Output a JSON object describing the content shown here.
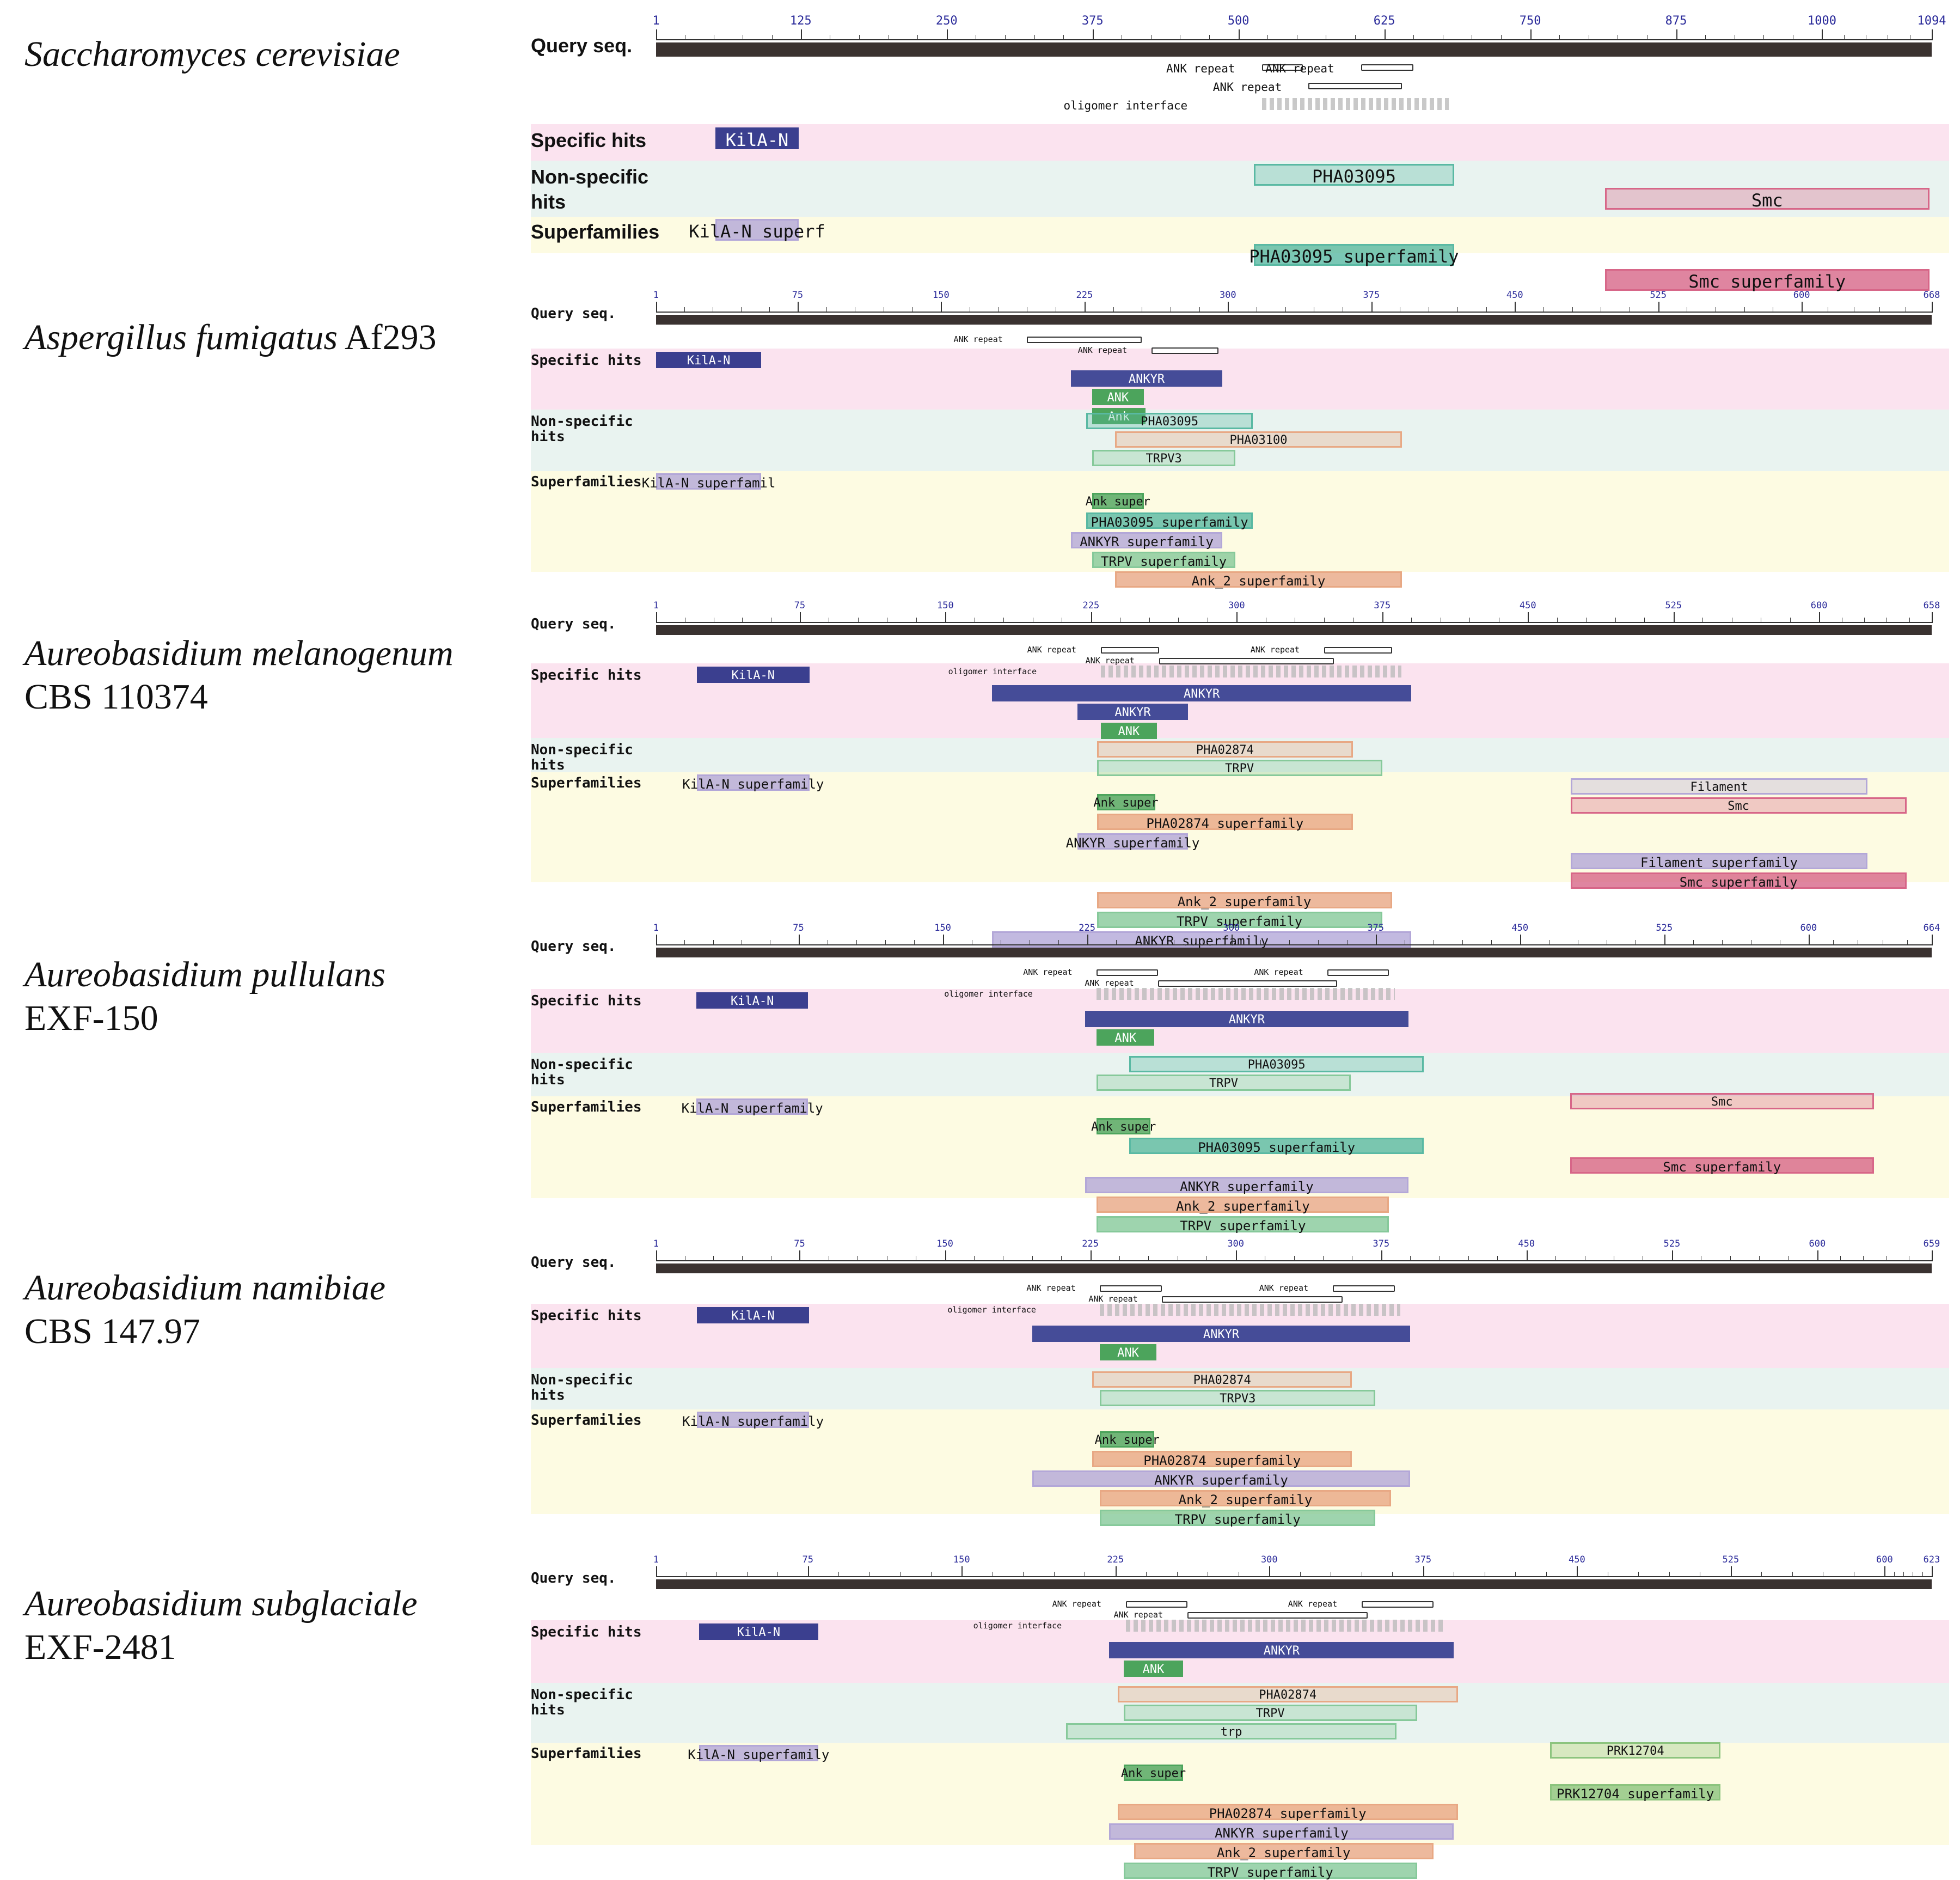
{
  "labels": {
    "query": "Query seq.",
    "specific": "Specific hits",
    "nonspecific1": "Non-specific",
    "nonspecific2": "hits",
    "superfamilies": "Superfamilies",
    "ank_repeat": "ANK repeat",
    "oligomer": "oligomer interface"
  },
  "colors": {
    "band_specific": "#fbe3ef",
    "band_nonspecific": "#e9f3f0",
    "band_superfamily": "#fdfbe2",
    "ruler": "#3a3230",
    "kila": "#3b3f8f",
    "ankyr": "#454c98",
    "ank": "#4ca45c",
    "pha": "#59b9a3",
    "pha_orange": "#e8a884",
    "trpv": "#86c99a",
    "smc": "#d76688",
    "superfamily_purple": "#b3a7d8",
    "prk": "#8cc47e"
  },
  "panels": [
    {
      "genus": "Saccharomyces cerevisiae",
      "strain": "",
      "length": 1094,
      "ticks": [
        "1",
        "125",
        "250",
        "375",
        "500",
        "625",
        "750",
        "875",
        "1000",
        "1094"
      ],
      "tick_values": [
        1,
        125,
        250,
        375,
        500,
        625,
        750,
        875,
        1000,
        1094
      ],
      "motifs": [
        {
          "label": "ANK repeat",
          "start": 520,
          "end": 555,
          "row": 0
        },
        {
          "label": "ANK repeat",
          "start": 605,
          "end": 650,
          "row": 0
        },
        {
          "label": "ANK repeat",
          "start": 560,
          "end": 640,
          "row": 1
        },
        {
          "label": "oligomer interface",
          "start": 520,
          "end": 680,
          "row": 2,
          "olig": true
        }
      ],
      "features": [
        {
          "name": "KilA-N",
          "start": 52,
          "end": 123,
          "kind": "specific",
          "color": "kila"
        },
        {
          "name": "KilA-N superf",
          "start": 52,
          "end": 123,
          "kind": "superfamily",
          "color": "superfamily_purple"
        },
        {
          "name": "PHA03095",
          "start": 513,
          "end": 685,
          "kind": "nonspecific",
          "color": "pha"
        },
        {
          "name": "PHA03095 superfamily",
          "start": 513,
          "end": 685,
          "kind": "superfamily",
          "color": "pha"
        },
        {
          "name": "Smc",
          "start": 814,
          "end": 1092,
          "kind": "nonspecific",
          "color": "smc"
        },
        {
          "name": "Smc superfamily",
          "start": 814,
          "end": 1092,
          "kind": "superfamily",
          "color": "smc"
        }
      ]
    },
    {
      "genus": "Aspergillus fumigatus",
      "strain": "Af293",
      "length": 668,
      "ticks": [
        "1",
        "75",
        "150",
        "225",
        "300",
        "375",
        "450",
        "525",
        "600",
        "668"
      ],
      "tick_values": [
        1,
        75,
        150,
        225,
        300,
        375,
        450,
        525,
        600,
        668
      ],
      "motifs": [
        {
          "label": "ANK repeat",
          "start": 195,
          "end": 255,
          "row": 0
        },
        {
          "label": "ANK repeat",
          "start": 260,
          "end": 295,
          "row": 1
        }
      ],
      "features": [
        {
          "name": "KilA-N",
          "start": 1,
          "end": 56,
          "kind": "specific",
          "color": "kila"
        },
        {
          "name": "KilA-N superfamil",
          "start": 1,
          "end": 56,
          "kind": "superfamily",
          "color": "superfamily_purple"
        },
        {
          "name": "ANKYR",
          "start": 218,
          "end": 297,
          "kind": "specific",
          "color": "ankyr"
        },
        {
          "name": "ANK",
          "start": 229,
          "end": 256,
          "kind": "specific",
          "color": "ank"
        },
        {
          "name": "Ank",
          "start": 229,
          "end": 257,
          "kind": "specific",
          "color": "ank"
        },
        {
          "name": "PHA03095",
          "start": 226,
          "end": 313,
          "kind": "nonspecific",
          "color": "pha"
        },
        {
          "name": "PHA03100",
          "start": 241,
          "end": 391,
          "kind": "nonspecific",
          "color": "pha_orange"
        },
        {
          "name": "TRPV3",
          "start": 229,
          "end": 304,
          "kind": "nonspecific",
          "color": "trpv"
        },
        {
          "name": "Ank super",
          "start": 229,
          "end": 256,
          "kind": "superfamily",
          "color": "ank"
        },
        {
          "name": "PHA03095 superfamily",
          "start": 226,
          "end": 313,
          "kind": "superfamily",
          "color": "pha"
        },
        {
          "name": "ANKYR superfamily",
          "start": 218,
          "end": 297,
          "kind": "superfamily",
          "color": "superfamily_purple"
        },
        {
          "name": "TRPV superfamily",
          "start": 229,
          "end": 304,
          "kind": "superfamily",
          "color": "trpv"
        },
        {
          "name": "Ank_2 superfamily",
          "start": 241,
          "end": 391,
          "kind": "superfamily",
          "color": "pha_orange"
        }
      ]
    },
    {
      "genus": "Aureobasidium melanogenum",
      "strain": "CBS 110374",
      "length": 658,
      "ticks": [
        "1",
        "75",
        "150",
        "225",
        "300",
        "375",
        "450",
        "525",
        "600",
        "658"
      ],
      "tick_values": [
        1,
        75,
        150,
        225,
        300,
        375,
        450,
        525,
        600,
        658
      ],
      "motifs": [
        {
          "label": "ANK repeat",
          "start": 230,
          "end": 260,
          "row": 0
        },
        {
          "label": "ANK repeat",
          "start": 345,
          "end": 380,
          "row": 0
        },
        {
          "label": "ANK repeat",
          "start": 260,
          "end": 350,
          "row": 1
        },
        {
          "label": "oligomer interface",
          "start": 230,
          "end": 385,
          "row": 2,
          "olig": true
        }
      ],
      "features": [
        {
          "name": "KilA-N",
          "start": 22,
          "end": 80,
          "kind": "specific",
          "color": "kila"
        },
        {
          "name": "KilA-N superfamily",
          "start": 22,
          "end": 80,
          "kind": "superfamily",
          "color": "superfamily_purple"
        },
        {
          "name": "ANKYR",
          "start": 174,
          "end": 390,
          "kind": "specific",
          "color": "ankyr"
        },
        {
          "name": "ANKYR",
          "start": 218,
          "end": 275,
          "kind": "specific",
          "color": "ankyr"
        },
        {
          "name": "ANK",
          "start": 230,
          "end": 259,
          "kind": "specific",
          "color": "ank"
        },
        {
          "name": "PHA02874",
          "start": 228,
          "end": 360,
          "kind": "nonspecific",
          "color": "pha_orange"
        },
        {
          "name": "TRPV",
          "start": 228,
          "end": 375,
          "kind": "nonspecific",
          "color": "trpv"
        },
        {
          "name": "Filament",
          "start": 472,
          "end": 625,
          "kind": "nonspecific",
          "color": "superfamily_purple"
        },
        {
          "name": "Smc",
          "start": 472,
          "end": 645,
          "kind": "nonspecific",
          "color": "smc"
        },
        {
          "name": "Ank super",
          "start": 228,
          "end": 258,
          "kind": "superfamily",
          "color": "ank"
        },
        {
          "name": "PHA02874 superfamily",
          "start": 228,
          "end": 360,
          "kind": "superfamily",
          "color": "pha_orange"
        },
        {
          "name": "ANKYR superfamily",
          "start": 218,
          "end": 275,
          "kind": "superfamily",
          "color": "superfamily_purple"
        },
        {
          "name": "Filament superfamily",
          "start": 472,
          "end": 625,
          "kind": "superfamily",
          "color": "superfamily_purple"
        },
        {
          "name": "Smc superfamily",
          "start": 472,
          "end": 645,
          "kind": "superfamily",
          "color": "smc"
        },
        {
          "name": "Ank_2 superfamily",
          "start": 228,
          "end": 380,
          "kind": "superfamily",
          "color": "pha_orange"
        },
        {
          "name": "TRPV superfamily",
          "start": 228,
          "end": 375,
          "kind": "superfamily",
          "color": "trpv"
        },
        {
          "name": "ANKYR superfamily",
          "start": 174,
          "end": 390,
          "kind": "superfamily",
          "color": "superfamily_purple"
        }
      ]
    },
    {
      "genus": "Aureobasidium pullulans",
      "strain": "EXF-150",
      "length": 664,
      "ticks": [
        "1",
        "75",
        "150",
        "225",
        "300",
        "375",
        "450",
        "525",
        "600",
        "664"
      ],
      "tick_values": [
        1,
        75,
        150,
        225,
        300,
        375,
        450,
        525,
        600,
        664
      ],
      "motifs": [
        {
          "label": "ANK repeat",
          "start": 230,
          "end": 262,
          "row": 0
        },
        {
          "label": "ANK repeat",
          "start": 350,
          "end": 382,
          "row": 0
        },
        {
          "label": "ANK repeat",
          "start": 262,
          "end": 355,
          "row": 1
        },
        {
          "label": "oligomer interface",
          "start": 230,
          "end": 385,
          "row": 2,
          "olig": true
        }
      ],
      "features": [
        {
          "name": "KilA-N",
          "start": 22,
          "end": 80,
          "kind": "specific",
          "color": "kila"
        },
        {
          "name": "KilA-N superfamily",
          "start": 22,
          "end": 80,
          "kind": "superfamily",
          "color": "superfamily_purple"
        },
        {
          "name": "ANKYR",
          "start": 224,
          "end": 392,
          "kind": "specific",
          "color": "ankyr"
        },
        {
          "name": "ANK",
          "start": 230,
          "end": 260,
          "kind": "specific",
          "color": "ank"
        },
        {
          "name": "PHA03095",
          "start": 247,
          "end": 400,
          "kind": "nonspecific",
          "color": "pha"
        },
        {
          "name": "TRPV",
          "start": 230,
          "end": 362,
          "kind": "nonspecific",
          "color": "trpv"
        },
        {
          "name": "Smc",
          "start": 476,
          "end": 634,
          "kind": "nonspecific",
          "color": "smc"
        },
        {
          "name": "Ank super",
          "start": 230,
          "end": 258,
          "kind": "superfamily",
          "color": "ank"
        },
        {
          "name": "PHA03095 superfamily",
          "start": 247,
          "end": 400,
          "kind": "superfamily",
          "color": "pha"
        },
        {
          "name": "Smc superfamily",
          "start": 476,
          "end": 634,
          "kind": "superfamily",
          "color": "smc"
        },
        {
          "name": "ANKYR superfamily",
          "start": 224,
          "end": 392,
          "kind": "superfamily",
          "color": "superfamily_purple"
        },
        {
          "name": "Ank_2 superfamily",
          "start": 230,
          "end": 382,
          "kind": "superfamily",
          "color": "pha_orange"
        },
        {
          "name": "TRPV superfamily",
          "start": 230,
          "end": 382,
          "kind": "superfamily",
          "color": "trpv"
        }
      ]
    },
    {
      "genus": "Aureobasidium namibiae",
      "strain": "CBS 147.97",
      "length": 659,
      "ticks": [
        "1",
        "75",
        "150",
        "225",
        "300",
        "375",
        "450",
        "525",
        "600",
        "659"
      ],
      "tick_values": [
        1,
        75,
        150,
        225,
        300,
        375,
        450,
        525,
        600,
        659
      ],
      "motifs": [
        {
          "label": "ANK repeat",
          "start": 230,
          "end": 262,
          "row": 0
        },
        {
          "label": "ANK repeat",
          "start": 350,
          "end": 382,
          "row": 0
        },
        {
          "label": "ANK repeat",
          "start": 262,
          "end": 355,
          "row": 1
        },
        {
          "label": "oligomer interface",
          "start": 230,
          "end": 385,
          "row": 2,
          "olig": true
        }
      ],
      "features": [
        {
          "name": "KilA-N",
          "start": 22,
          "end": 80,
          "kind": "specific",
          "color": "kila"
        },
        {
          "name": "KilA-N superfamily",
          "start": 22,
          "end": 80,
          "kind": "superfamily",
          "color": "superfamily_purple"
        },
        {
          "name": "ANKYR",
          "start": 195,
          "end": 390,
          "kind": "specific",
          "color": "ankyr"
        },
        {
          "name": "ANK",
          "start": 230,
          "end": 259,
          "kind": "specific",
          "color": "ank"
        },
        {
          "name": "PHA02874",
          "start": 226,
          "end": 360,
          "kind": "nonspecific",
          "color": "pha_orange"
        },
        {
          "name": "TRPV3",
          "start": 230,
          "end": 372,
          "kind": "nonspecific",
          "color": "trpv"
        },
        {
          "name": "Ank super",
          "start": 230,
          "end": 258,
          "kind": "superfamily",
          "color": "ank"
        },
        {
          "name": "PHA02874 superfamily",
          "start": 226,
          "end": 360,
          "kind": "superfamily",
          "color": "pha_orange"
        },
        {
          "name": "ANKYR superfamily",
          "start": 195,
          "end": 390,
          "kind": "superfamily",
          "color": "superfamily_purple"
        },
        {
          "name": "Ank_2 superfamily",
          "start": 230,
          "end": 380,
          "kind": "superfamily",
          "color": "pha_orange"
        },
        {
          "name": "TRPV superfamily",
          "start": 230,
          "end": 372,
          "kind": "superfamily",
          "color": "trpv"
        }
      ]
    },
    {
      "genus": "Aureobasidium subglaciale",
      "strain": "EXF-2481",
      "length": 623,
      "ticks": [
        "1",
        "75",
        "150",
        "225",
        "300",
        "375",
        "450",
        "525",
        "600",
        "623"
      ],
      "tick_values": [
        1,
        75,
        150,
        225,
        300,
        375,
        450,
        525,
        600,
        623
      ],
      "motifs": [
        {
          "label": "ANK repeat",
          "start": 230,
          "end": 260,
          "row": 0
        },
        {
          "label": "ANK repeat",
          "start": 345,
          "end": 380,
          "row": 0
        },
        {
          "label": "ANK repeat",
          "start": 260,
          "end": 348,
          "row": 1
        },
        {
          "label": "oligomer interface",
          "start": 230,
          "end": 385,
          "row": 2,
          "olig": true
        }
      ],
      "features": [
        {
          "name": "KilA-N",
          "start": 22,
          "end": 80,
          "kind": "specific",
          "color": "kila"
        },
        {
          "name": "KilA-N superfamily",
          "start": 22,
          "end": 80,
          "kind": "superfamily",
          "color": "superfamily_purple"
        },
        {
          "name": "ANKYR",
          "start": 222,
          "end": 390,
          "kind": "specific",
          "color": "ankyr"
        },
        {
          "name": "ANK",
          "start": 229,
          "end": 258,
          "kind": "specific",
          "color": "ank"
        },
        {
          "name": "PHA02874",
          "start": 226,
          "end": 392,
          "kind": "nonspecific",
          "color": "pha_orange"
        },
        {
          "name": "TRPV",
          "start": 229,
          "end": 372,
          "kind": "nonspecific",
          "color": "trpv"
        },
        {
          "name": "trp",
          "start": 201,
          "end": 362,
          "kind": "nonspecific",
          "color": "trpv"
        },
        {
          "name": "PRK12704",
          "start": 437,
          "end": 520,
          "kind": "nonspecific",
          "color": "prk"
        },
        {
          "name": "Ank super",
          "start": 229,
          "end": 258,
          "kind": "superfamily",
          "color": "ank"
        },
        {
          "name": "PRK12704 superfamily",
          "start": 437,
          "end": 520,
          "kind": "superfamily",
          "color": "prk"
        },
        {
          "name": "PHA02874 superfamily",
          "start": 226,
          "end": 392,
          "kind": "superfamily",
          "color": "pha_orange"
        },
        {
          "name": "ANKYR superfamily",
          "start": 222,
          "end": 390,
          "kind": "superfamily",
          "color": "superfamily_purple"
        },
        {
          "name": "Ank_2 superfamily",
          "start": 234,
          "end": 380,
          "kind": "superfamily",
          "color": "pha_orange"
        },
        {
          "name": "TRPV superfamily",
          "start": 229,
          "end": 372,
          "kind": "superfamily",
          "color": "trpv"
        }
      ]
    }
  ]
}
